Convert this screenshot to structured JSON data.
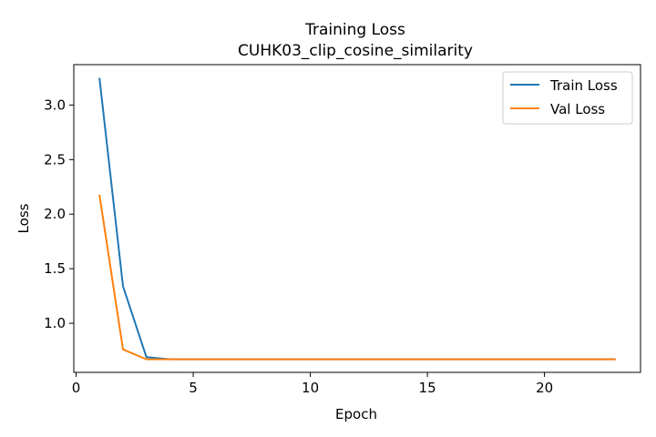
{
  "chart_data": {
    "type": "line",
    "title": "Training Loss",
    "subtitle": "CUHK03_clip_cosine_similarity",
    "xlabel": "Epoch",
    "ylabel": "Loss",
    "xlim": [
      -0.1,
      24.1
    ],
    "ylim": [
      0.55,
      3.37
    ],
    "xticks": [
      0,
      5,
      10,
      15,
      20
    ],
    "yticks": [
      1.0,
      1.5,
      2.0,
      2.5,
      3.0
    ],
    "grid": false,
    "legend_position": "top-right",
    "series": [
      {
        "name": "Train Loss",
        "color": "#1f77b4",
        "x": [
          1,
          2,
          3,
          4,
          5,
          6,
          7,
          8,
          9,
          10,
          11,
          12,
          13,
          14,
          15,
          16,
          17,
          18,
          19,
          20,
          21,
          22,
          23
        ],
        "y": [
          3.24,
          1.34,
          0.69,
          0.67,
          0.67,
          0.67,
          0.67,
          0.67,
          0.67,
          0.67,
          0.67,
          0.67,
          0.67,
          0.67,
          0.67,
          0.67,
          0.67,
          0.67,
          0.67,
          0.67,
          0.67,
          0.67,
          0.67
        ]
      },
      {
        "name": "Val Loss",
        "color": "#ff7f0e",
        "x": [
          1,
          2,
          3,
          4,
          5,
          6,
          7,
          8,
          9,
          10,
          11,
          12,
          13,
          14,
          15,
          16,
          17,
          18,
          19,
          20,
          21,
          22,
          23
        ],
        "y": [
          2.17,
          0.76,
          0.67,
          0.67,
          0.67,
          0.67,
          0.67,
          0.67,
          0.67,
          0.67,
          0.67,
          0.67,
          0.67,
          0.67,
          0.67,
          0.67,
          0.67,
          0.67,
          0.67,
          0.67,
          0.67,
          0.67,
          0.67
        ]
      }
    ]
  }
}
